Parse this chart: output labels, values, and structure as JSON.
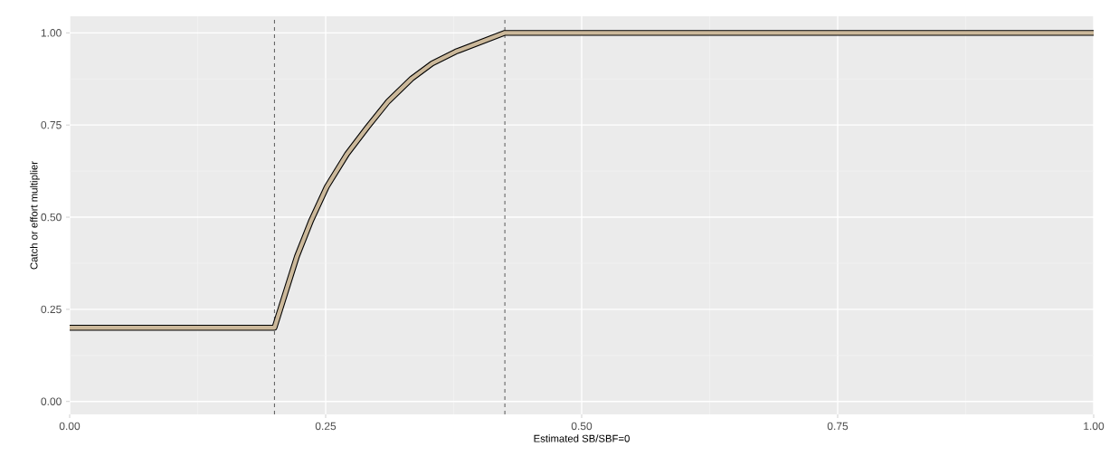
{
  "chart_data": {
    "type": "line",
    "xlabel": "Estimated SB/SBF=0",
    "ylabel": "Catch or effort multiplier",
    "xlim": [
      0,
      1
    ],
    "ylim": [
      -0.035,
      1.045
    ],
    "xticks": [
      {
        "value": 0,
        "label": "0.00"
      },
      {
        "value": 0.25,
        "label": "0.25"
      },
      {
        "value": 0.5,
        "label": "0.50"
      },
      {
        "value": 0.75,
        "label": "0.75"
      },
      {
        "value": 1,
        "label": "1.00"
      }
    ],
    "yticks": [
      {
        "value": 0,
        "label": "0.00"
      },
      {
        "value": 0.25,
        "label": "0.25"
      },
      {
        "value": 0.5,
        "label": "0.50"
      },
      {
        "value": 0.75,
        "label": "0.75"
      },
      {
        "value": 1,
        "label": "1.00"
      }
    ],
    "grid": true,
    "marker": "none",
    "line_style": "solid",
    "ref_lines": [
      {
        "axis": "x",
        "value": 0.2,
        "line_style": "dashed"
      },
      {
        "axis": "x",
        "value": 0.425,
        "line_style": "dashed"
      }
    ],
    "series": [
      {
        "color": "#cbb89a",
        "x": [
          0,
          0.2,
          0.222,
          0.236,
          0.251,
          0.271,
          0.291,
          0.311,
          0.334,
          0.354,
          0.377,
          0.425,
          1
        ],
        "values": [
          0.2,
          0.2,
          0.394,
          0.492,
          0.582,
          0.672,
          0.745,
          0.814,
          0.876,
          0.917,
          0.949,
          1,
          1
        ]
      }
    ]
  }
}
